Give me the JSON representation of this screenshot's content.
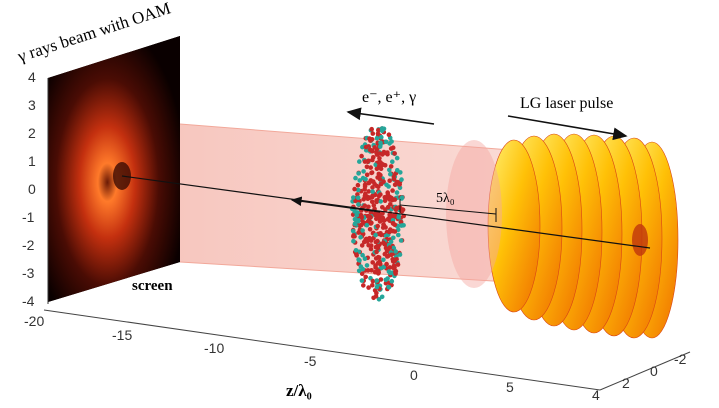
{
  "labels": {
    "screen_title": "γ rays beam with OAM",
    "particles": "e⁻, e⁺, γ",
    "laser": "LG laser pulse",
    "screen": "screen",
    "distance": "5λ₀",
    "z_axis": "z/λ₀"
  },
  "vertical_ticks": [
    "4",
    "3",
    "2",
    "1",
    "0",
    "-1",
    "-2",
    "-3",
    "-4"
  ],
  "z_ticks": [
    "-20",
    "-15",
    "-10",
    "-5",
    "0",
    "5"
  ],
  "depth_ticks": [
    "4",
    "2",
    "0",
    "-2"
  ],
  "colors": {
    "beam": "#f6c1b8",
    "electron": "#c62828",
    "positron": "#26a69a",
    "laser_light": "#ffd54f",
    "laser_dark": "#e65100"
  }
}
